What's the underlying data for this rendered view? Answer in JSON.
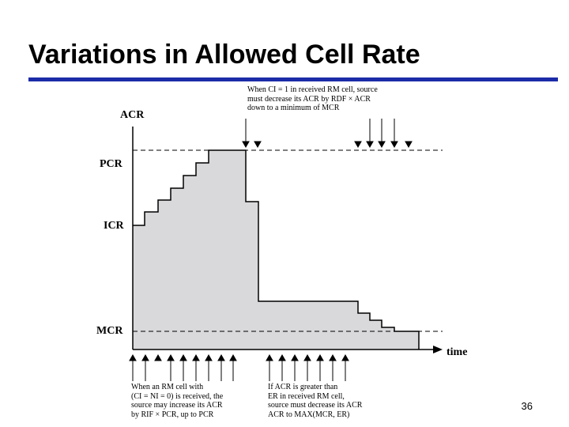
{
  "title": "Variations in Allowed Cell Rate",
  "accent_color": "#1c2ba8",
  "fill_color": "#d9d9dc",
  "slide_number": "36",
  "diagram": {
    "y_labels": {
      "acr": "ACR",
      "pcr": "PCR",
      "icr": "ICR",
      "mcr": "MCR"
    },
    "x_label": "time",
    "note_top": "When CI = 1 in received RM cell, source\nmust decrease its ACR by RDF × ACR\ndown to a minimum of MCR",
    "note_bottom_left": "When an RM cell with\n(CI = NI = 0) is received, the\nsource may increase its ACR\nby RIF × PCR, up to PCR",
    "note_bottom_right": "If ACR is greater than\nER in received RM cell,\nsource must decrease its ACR\nACR to MAX(MCR, ER)"
  }
}
